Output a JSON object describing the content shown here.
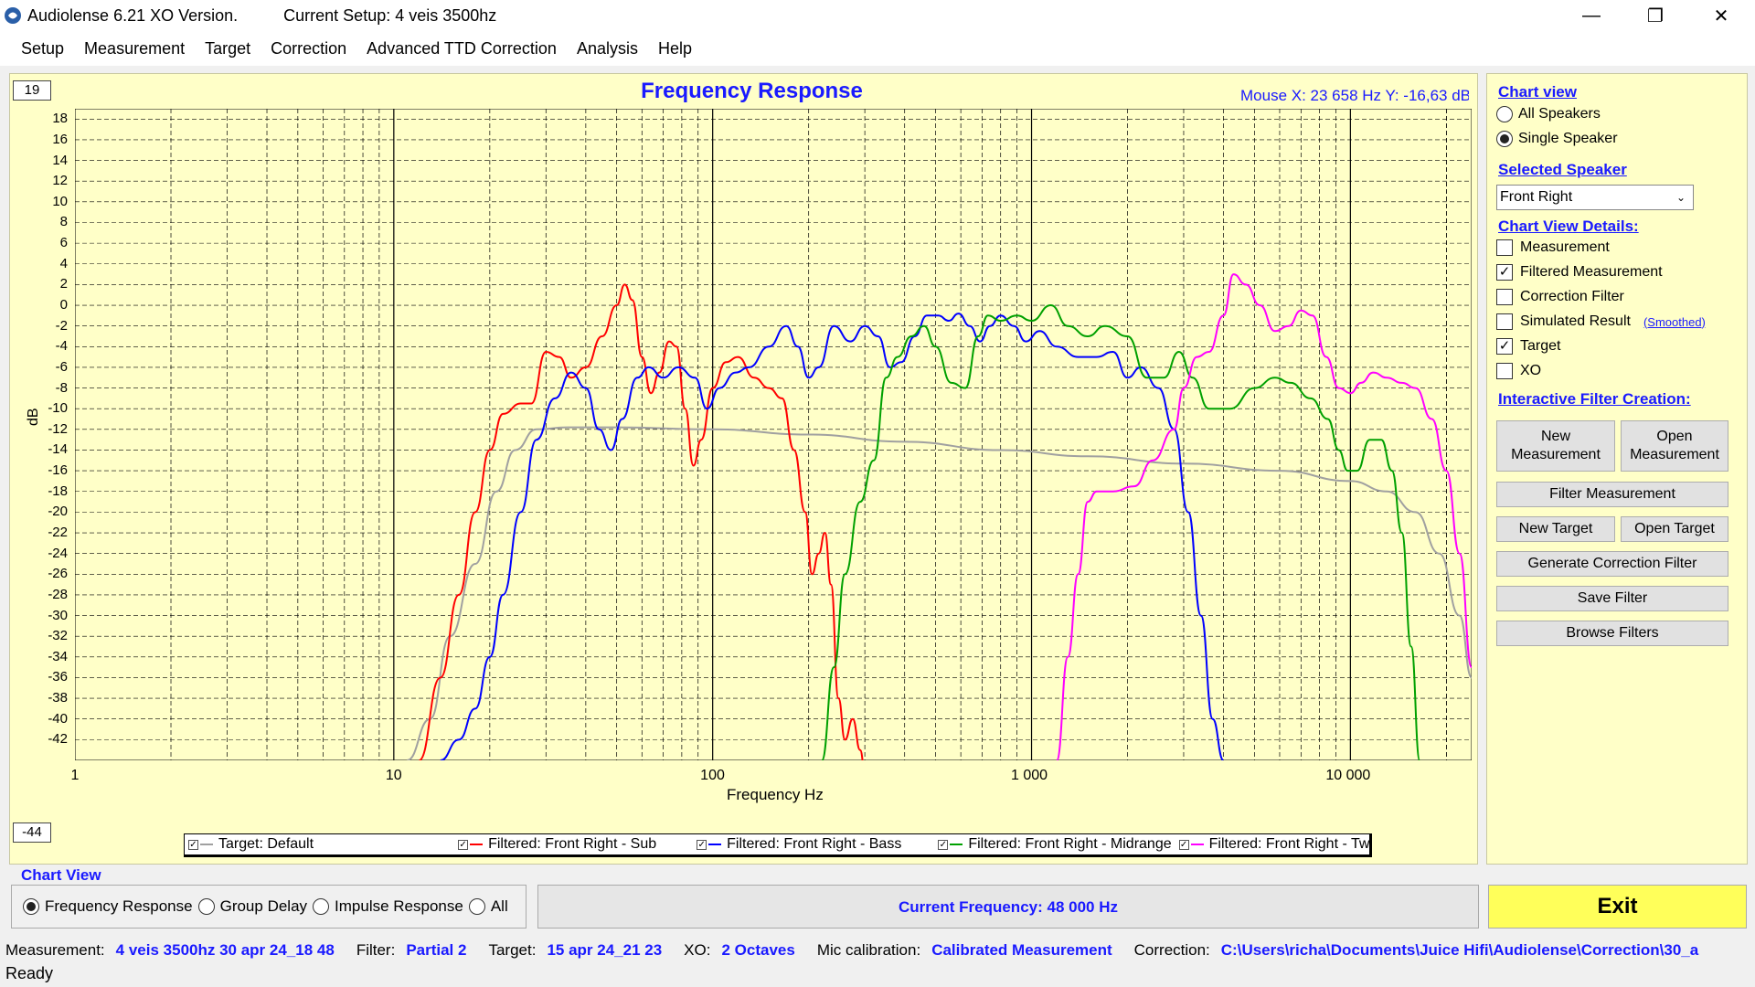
{
  "window": {
    "app_title": "Audiolense 6.21 XO Version.",
    "setup_title": "Current Setup: 4 veis 3500hz",
    "minimize": "—",
    "restore": "❐",
    "close": "✕"
  },
  "menu": [
    "Setup",
    "Measurement",
    "Target",
    "Correction",
    "Advanced TTD Correction",
    "Analysis",
    "Help"
  ],
  "chart": {
    "title": "Frequency Response",
    "mouse_readout": "Mouse X: 23 658 Hz    Y: -16,63 dB",
    "top_box": "19",
    "bottom_box": "-44",
    "ylabel": "dB",
    "xlabel": "Frequency Hz",
    "y_ticks": [
      "18",
      "16",
      "14",
      "12",
      "10",
      "8",
      "6",
      "4",
      "2",
      "0",
      "-2",
      "-4",
      "-6",
      "-8",
      "-10",
      "-12",
      "-14",
      "-16",
      "-18",
      "-20",
      "-22",
      "-24",
      "-26",
      "-28",
      "-30",
      "-32",
      "-34",
      "-36",
      "-38",
      "-40",
      "-42"
    ],
    "x_ticks": [
      "1",
      "10",
      "100",
      "1 000",
      "10 000"
    ]
  },
  "chart_data": {
    "type": "line",
    "title": "Frequency Response",
    "xlabel": "Frequency Hz",
    "ylabel": "dB",
    "x_scale": "log",
    "xlim": [
      1,
      24000
    ],
    "ylim": [
      -44,
      19
    ],
    "grid": true,
    "legend_position": "bottom",
    "series": [
      {
        "name": "Target: Default",
        "color": "#a0a0a0",
        "points": [
          [
            11,
            -44
          ],
          [
            13,
            -40
          ],
          [
            15,
            -32
          ],
          [
            18,
            -25
          ],
          [
            21,
            -18
          ],
          [
            24,
            -14
          ],
          [
            28,
            -12
          ],
          [
            35,
            -11.8
          ],
          [
            50,
            -11.8
          ],
          [
            100,
            -12
          ],
          [
            200,
            -12.5
          ],
          [
            400,
            -13.2
          ],
          [
            800,
            -14
          ],
          [
            1500,
            -14.6
          ],
          [
            3000,
            -15.3
          ],
          [
            6000,
            -16
          ],
          [
            10000,
            -17
          ],
          [
            13000,
            -18
          ],
          [
            16000,
            -20
          ],
          [
            19000,
            -24
          ],
          [
            22000,
            -30
          ],
          [
            24000,
            -36
          ]
        ]
      },
      {
        "name": "Filtered: Front Right - Sub",
        "color": "#ff0000",
        "points": [
          [
            12,
            -44
          ],
          [
            14,
            -36
          ],
          [
            16,
            -28
          ],
          [
            18,
            -20
          ],
          [
            20,
            -14
          ],
          [
            22,
            -10.5
          ],
          [
            25,
            -9.5
          ],
          [
            27,
            -9.5
          ],
          [
            30,
            -4.5
          ],
          [
            33,
            -5
          ],
          [
            36,
            -7
          ],
          [
            40,
            -6
          ],
          [
            45,
            -3
          ],
          [
            50,
            0
          ],
          [
            53,
            2
          ],
          [
            56,
            0.5
          ],
          [
            60,
            -5
          ],
          [
            64,
            -8.5
          ],
          [
            68,
            -6.5
          ],
          [
            73,
            -3.5
          ],
          [
            77,
            -4
          ],
          [
            82,
            -10
          ],
          [
            87,
            -15.5
          ],
          [
            92,
            -13
          ],
          [
            100,
            -8
          ],
          [
            110,
            -5.5
          ],
          [
            120,
            -5
          ],
          [
            135,
            -7
          ],
          [
            150,
            -8
          ],
          [
            165,
            -9
          ],
          [
            180,
            -14
          ],
          [
            195,
            -20
          ],
          [
            205,
            -26
          ],
          [
            215,
            -24
          ],
          [
            225,
            -22
          ],
          [
            235,
            -27
          ],
          [
            248,
            -38
          ],
          [
            260,
            -42
          ],
          [
            275,
            -40
          ],
          [
            290,
            -43
          ],
          [
            300,
            -45
          ]
        ]
      },
      {
        "name": "Filtered: Front Right - Bass",
        "color": "#0000ff",
        "points": [
          [
            14,
            -44
          ],
          [
            16,
            -42
          ],
          [
            18,
            -39
          ],
          [
            20,
            -34
          ],
          [
            22,
            -28
          ],
          [
            25,
            -20
          ],
          [
            28,
            -13
          ],
          [
            32,
            -9
          ],
          [
            36,
            -6.5
          ],
          [
            40,
            -8
          ],
          [
            44,
            -12
          ],
          [
            48,
            -14
          ],
          [
            52,
            -11
          ],
          [
            58,
            -7
          ],
          [
            63,
            -6
          ],
          [
            70,
            -7
          ],
          [
            78,
            -6
          ],
          [
            88,
            -7
          ],
          [
            96,
            -10
          ],
          [
            105,
            -8
          ],
          [
            118,
            -6.5
          ],
          [
            130,
            -6
          ],
          [
            150,
            -4
          ],
          [
            170,
            -2
          ],
          [
            185,
            -4
          ],
          [
            200,
            -7
          ],
          [
            215,
            -6
          ],
          [
            240,
            -2
          ],
          [
            270,
            -3.5
          ],
          [
            300,
            -2
          ],
          [
            330,
            -3
          ],
          [
            360,
            -6
          ],
          [
            390,
            -5.5
          ],
          [
            430,
            -3
          ],
          [
            470,
            -1
          ],
          [
            510,
            -1
          ],
          [
            550,
            -1.5
          ],
          [
            590,
            -0.8
          ],
          [
            640,
            -2
          ],
          [
            690,
            -3.5
          ],
          [
            740,
            -2
          ],
          [
            800,
            -1
          ],
          [
            880,
            -2
          ],
          [
            960,
            -3.5
          ],
          [
            1060,
            -2.5
          ],
          [
            1200,
            -4
          ],
          [
            1400,
            -5
          ],
          [
            1600,
            -5
          ],
          [
            1800,
            -4.5
          ],
          [
            2000,
            -7
          ],
          [
            2200,
            -6
          ],
          [
            2500,
            -8
          ],
          [
            2800,
            -12
          ],
          [
            3100,
            -20
          ],
          [
            3400,
            -30
          ],
          [
            3700,
            -40
          ],
          [
            4000,
            -44
          ]
        ]
      },
      {
        "name": "Filtered: Front Right - Midrange",
        "color": "#00a000",
        "points": [
          [
            220,
            -44
          ],
          [
            240,
            -35
          ],
          [
            260,
            -26
          ],
          [
            290,
            -19
          ],
          [
            320,
            -15
          ],
          [
            350,
            -7
          ],
          [
            380,
            -5
          ],
          [
            420,
            -3
          ],
          [
            460,
            -2
          ],
          [
            500,
            -4
          ],
          [
            560,
            -7.5
          ],
          [
            620,
            -8
          ],
          [
            680,
            -3
          ],
          [
            730,
            -1
          ],
          [
            800,
            -1.5
          ],
          [
            900,
            -1
          ],
          [
            1000,
            -1.5
          ],
          [
            1150,
            0
          ],
          [
            1300,
            -2
          ],
          [
            1500,
            -3
          ],
          [
            1700,
            -2
          ],
          [
            2000,
            -3
          ],
          [
            2300,
            -7
          ],
          [
            2600,
            -7
          ],
          [
            2900,
            -4.5
          ],
          [
            3200,
            -7
          ],
          [
            3600,
            -10
          ],
          [
            4200,
            -10
          ],
          [
            5000,
            -8
          ],
          [
            5800,
            -7
          ],
          [
            6500,
            -7.5
          ],
          [
            7500,
            -9
          ],
          [
            8500,
            -11
          ],
          [
            9200,
            -14
          ],
          [
            9800,
            -16
          ],
          [
            10500,
            -16
          ],
          [
            11500,
            -13
          ],
          [
            12500,
            -13
          ],
          [
            13500,
            -16
          ],
          [
            14500,
            -22
          ],
          [
            15500,
            -33
          ],
          [
            16500,
            -44
          ]
        ]
      },
      {
        "name": "Filtered: Front Right - Tweeter",
        "color": "#ff00ff",
        "points": [
          [
            1200,
            -44
          ],
          [
            1300,
            -34
          ],
          [
            1400,
            -26
          ],
          [
            1500,
            -19
          ],
          [
            1600,
            -18
          ],
          [
            1800,
            -18
          ],
          [
            2100,
            -17.5
          ],
          [
            2400,
            -15
          ],
          [
            2800,
            -12
          ],
          [
            3000,
            -8
          ],
          [
            3300,
            -5
          ],
          [
            3600,
            -4.5
          ],
          [
            4000,
            -1
          ],
          [
            4300,
            3
          ],
          [
            4700,
            2
          ],
          [
            5200,
            0
          ],
          [
            5800,
            -2.5
          ],
          [
            6400,
            -2
          ],
          [
            7000,
            -0.5
          ],
          [
            7600,
            -1
          ],
          [
            8400,
            -5
          ],
          [
            9200,
            -8
          ],
          [
            10000,
            -8.5
          ],
          [
            10800,
            -7.5
          ],
          [
            11800,
            -6.5
          ],
          [
            13000,
            -7
          ],
          [
            14500,
            -7.5
          ],
          [
            16000,
            -8
          ],
          [
            18000,
            -11
          ],
          [
            20000,
            -16
          ],
          [
            22000,
            -24
          ],
          [
            24000,
            -35
          ]
        ]
      }
    ]
  },
  "legend": [
    {
      "label": "Target: Default",
      "color": "#a0a0a0"
    },
    {
      "label": "Filtered: Front Right - Sub",
      "color": "#ff0000"
    },
    {
      "label": "Filtered: Front Right - Bass",
      "color": "#0000ff"
    },
    {
      "label": "Filtered: Front Right - Midrange",
      "color": "#00a000"
    },
    {
      "label": "Filtered: Front Right - Tweeter",
      "color": "#ff00ff"
    }
  ],
  "chart_view_panel": {
    "title": "Chart View",
    "options": [
      "Frequency Response",
      "Group Delay",
      "Impulse Response",
      "All"
    ],
    "selected": "Frequency Response",
    "current_frequency": "Current Frequency: 48 000 Hz",
    "exit_label": "Exit"
  },
  "right_panel": {
    "chart_view_head": "Chart view",
    "all_speakers": "All Speakers",
    "single_speaker": "Single Speaker",
    "selected_speaker_head": "Selected Speaker",
    "selected_speaker_value": "Front Right",
    "details_head": "Chart View Details:",
    "measurement": "Measurement",
    "filtered_measurement": "Filtered Measurement",
    "correction_filter": "Correction Filter",
    "simulated_result": "Simulated Result",
    "smoothed": "(Smoothed)",
    "target": "Target",
    "xo": "XO",
    "interactive_head": "Interactive Filter Creation:",
    "new_measurement": "New Measurement",
    "open_measurement": "Open Measurement",
    "filter_measurement": "Filter Measurement",
    "new_target": "New Target",
    "open_target": "Open Target",
    "generate_correction": "Generate Correction Filter",
    "save_filter": "Save Filter",
    "browse_filters": "Browse Filters"
  },
  "status": {
    "measurement_label": "Measurement:",
    "measurement_value": "4 veis 3500hz 30 apr 24_18 48",
    "filter_label": "Filter:",
    "filter_value": "Partial 2",
    "target_label": "Target:",
    "target_value": "15 apr 24_21 23",
    "xo_label": "XO:",
    "xo_value": "2 Octaves",
    "mic_label": "Mic calibration:",
    "mic_value": "Calibrated Measurement",
    "correction_label": "Correction:",
    "correction_value": "C:\\Users\\richa\\Documents\\Juice Hifi\\Audiolense\\Correction\\30_a",
    "ready": "Ready"
  }
}
